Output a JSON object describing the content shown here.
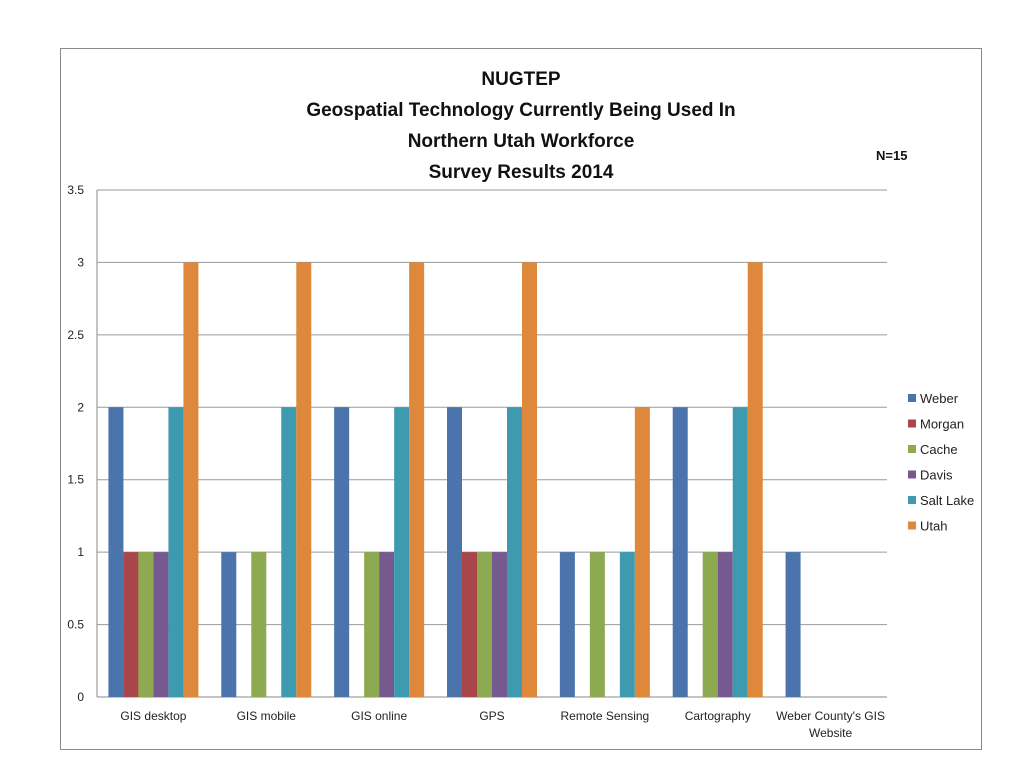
{
  "chart_data": {
    "type": "bar",
    "title_lines": [
      "NUGTEP",
      "Geospatial Technology Currently Being Used In",
      "Northern Utah Workforce",
      "Survey Results 2014"
    ],
    "note": "N=15",
    "categories": [
      [
        "GIS desktop"
      ],
      [
        "GIS mobile"
      ],
      [
        "GIS online"
      ],
      [
        "GPS"
      ],
      [
        "Remote Sensing"
      ],
      [
        "Cartography"
      ],
      [
        "Weber County's GIS",
        "Website"
      ]
    ],
    "series": [
      {
        "name": "Weber",
        "color": "#4A74AB",
        "values": [
          2,
          1,
          2,
          2,
          1,
          2,
          1
        ]
      },
      {
        "name": "Morgan",
        "color": "#A9464A",
        "values": [
          1,
          0,
          0,
          1,
          0,
          0,
          0
        ]
      },
      {
        "name": "Cache",
        "color": "#8DAA50",
        "values": [
          1,
          1,
          1,
          1,
          1,
          1,
          0
        ]
      },
      {
        "name": "Davis",
        "color": "#75598F",
        "values": [
          1,
          0,
          1,
          1,
          0,
          1,
          0
        ]
      },
      {
        "name": "Salt Lake",
        "color": "#3E9AAF",
        "values": [
          2,
          2,
          2,
          2,
          1,
          2,
          0
        ]
      },
      {
        "name": "Utah",
        "color": "#DE883C",
        "values": [
          3,
          3,
          3,
          3,
          2,
          3,
          0
        ]
      }
    ],
    "y_ticks": [
      "0",
      "0.5",
      "1",
      "1.5",
      "2",
      "2.5",
      "3",
      "3.5"
    ],
    "ylim": [
      0,
      3.5
    ],
    "grid": true,
    "legend_position": "right"
  }
}
